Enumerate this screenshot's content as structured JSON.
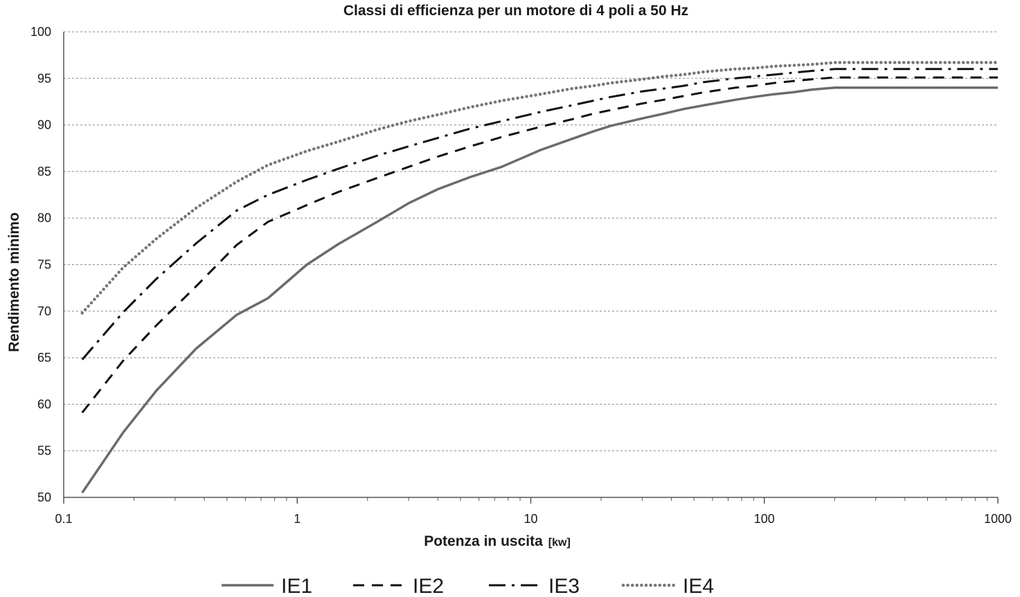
{
  "chart_data": {
    "type": "line",
    "title": "Classi di efficienza per un motore di 4 poli a 50 Hz",
    "xlabel": "Potenza in uscita",
    "xlabel_unit": "[kw]",
    "ylabel": "Rendimento minimo",
    "x_scale": "log",
    "xlim": [
      0.1,
      1000
    ],
    "ylim": [
      50,
      100
    ],
    "x_ticks": [
      0.1,
      1,
      10,
      100,
      1000
    ],
    "x_tick_labels": [
      "0.1",
      "1",
      "10",
      "100",
      "1000"
    ],
    "y_ticks": [
      50,
      55,
      60,
      65,
      70,
      75,
      80,
      85,
      90,
      95,
      100
    ],
    "y_tick_labels": [
      "50",
      "55",
      "60",
      "65",
      "70",
      "75",
      "80",
      "85",
      "90",
      "95",
      "100"
    ],
    "grid": "horizontal dotted",
    "legend": "bottom",
    "series": [
      {
        "name": "IE1",
        "color": "#6b6b6b",
        "style": "solid",
        "x": [
          0.12,
          0.18,
          0.25,
          0.37,
          0.55,
          0.75,
          1.1,
          1.5,
          2.2,
          3,
          4,
          5.5,
          7.5,
          11,
          15,
          18.5,
          22,
          30,
          37,
          45,
          55,
          75,
          90,
          110,
          132,
          160,
          200,
          1000
        ],
        "y": [
          50.5,
          57,
          61.5,
          66,
          69.6,
          71.4,
          75,
          77.2,
          79.6,
          81.6,
          83.1,
          84.4,
          85.5,
          87.3,
          88.5,
          89.3,
          89.9,
          90.7,
          91.2,
          91.7,
          92.1,
          92.7,
          93,
          93.3,
          93.5,
          93.8,
          94,
          94
        ]
      },
      {
        "name": "IE2",
        "color": "#111111",
        "style": "dashed",
        "x": [
          0.12,
          0.18,
          0.25,
          0.37,
          0.55,
          0.75,
          1.1,
          1.5,
          2.2,
          3,
          4,
          5.5,
          7.5,
          11,
          15,
          18.5,
          22,
          30,
          37,
          45,
          55,
          75,
          90,
          110,
          132,
          160,
          200,
          1000
        ],
        "y": [
          59.1,
          64.7,
          68.5,
          72.7,
          77.1,
          79.6,
          81.4,
          82.8,
          84.3,
          85.5,
          86.6,
          87.7,
          88.7,
          89.8,
          90.6,
          91.2,
          91.6,
          92.3,
          92.7,
          93.1,
          93.5,
          94,
          94.2,
          94.5,
          94.7,
          94.9,
          95.1,
          95.1
        ]
      },
      {
        "name": "IE3",
        "color": "#111111",
        "style": "dash-dot",
        "x": [
          0.12,
          0.18,
          0.25,
          0.37,
          0.55,
          0.75,
          1.1,
          1.5,
          2.2,
          3,
          4,
          5.5,
          7.5,
          11,
          15,
          18.5,
          22,
          30,
          37,
          45,
          55,
          75,
          90,
          110,
          132,
          160,
          200,
          1000
        ],
        "y": [
          64.8,
          69.9,
          73.5,
          77.3,
          80.8,
          82.5,
          84.1,
          85.3,
          86.7,
          87.7,
          88.6,
          89.6,
          90.4,
          91.4,
          92.1,
          92.6,
          93,
          93.6,
          93.9,
          94.2,
          94.6,
          95,
          95.2,
          95.4,
          95.6,
          95.8,
          96,
          96
        ]
      },
      {
        "name": "IE4",
        "color": "#777777",
        "style": "dotted",
        "x": [
          0.12,
          0.18,
          0.25,
          0.37,
          0.55,
          0.75,
          1.1,
          1.5,
          2.2,
          3,
          4,
          5.5,
          7.5,
          11,
          15,
          18.5,
          22,
          30,
          37,
          45,
          55,
          75,
          90,
          110,
          132,
          160,
          200,
          1000
        ],
        "y": [
          69.8,
          74.7,
          77.8,
          81.1,
          83.9,
          85.7,
          87.2,
          88.2,
          89.5,
          90.4,
          91.1,
          91.9,
          92.6,
          93.3,
          93.9,
          94.2,
          94.5,
          94.9,
          95.2,
          95.4,
          95.7,
          96,
          96.1,
          96.3,
          96.4,
          96.5,
          96.7,
          96.7
        ]
      }
    ]
  }
}
